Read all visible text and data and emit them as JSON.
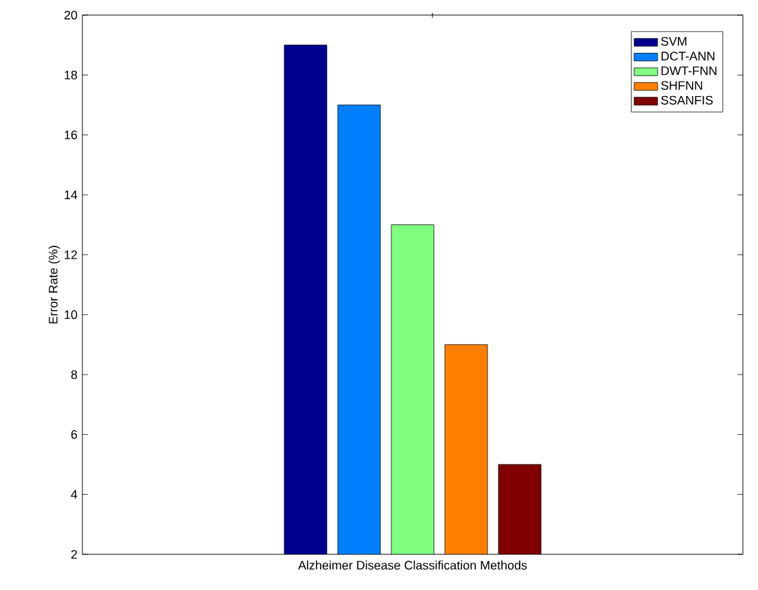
{
  "chart_data": {
    "type": "bar",
    "title": "t",
    "xlabel": "Alzheimer Disease Classification Methods",
    "ylabel": "Error Rate (%)",
    "categories": [
      null
    ],
    "series": [
      {
        "name": "SVM",
        "color": "#00008f",
        "values": [
          19
        ]
      },
      {
        "name": "DCT-ANN",
        "color": "#0080ff",
        "values": [
          17
        ]
      },
      {
        "name": "DWT-FNN",
        "color": "#80ff80",
        "values": [
          13
        ]
      },
      {
        "name": "SHFNN",
        "color": "#ff8000",
        "values": [
          9
        ]
      },
      {
        "name": "SSANFIS",
        "color": "#800000",
        "values": [
          5
        ]
      }
    ],
    "ylim": [
      2,
      20
    ],
    "yticks": [
      2,
      4,
      6,
      8,
      10,
      12,
      14,
      16,
      18,
      20
    ],
    "legend": "top right",
    "tick_labels": "y"
  }
}
